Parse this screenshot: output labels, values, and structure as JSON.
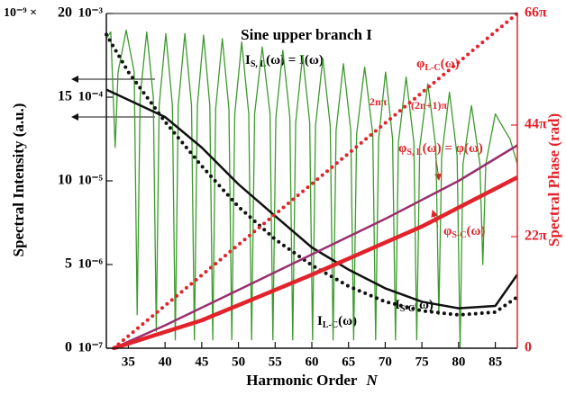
{
  "chart_data": {
    "type": "line",
    "title": "Sine upper branch I",
    "x_label": {
      "main": "Harmonic Order",
      "var": "N"
    },
    "y_label": "Spectral Intensity   (a.u.)",
    "y2_label": "Spectral Phase   (rad)",
    "ytick_multiplier": "10⁻⁹ ×",
    "xlim": [
      32,
      88
    ],
    "xticks": [
      35,
      40,
      45,
      50,
      55,
      60,
      65,
      70,
      75,
      80,
      85
    ],
    "ylim": [
      0,
      20
    ],
    "yticks": [
      0,
      5,
      10,
      15,
      20
    ],
    "y3lim": [
      1e-07,
      0.001
    ],
    "y3log": true,
    "y3ticks": [
      {
        "value": 1e-07,
        "label": "10⁻⁷"
      },
      {
        "value": 1e-06,
        "label": "10⁻⁶"
      },
      {
        "value": 1e-05,
        "label": "10⁻⁵"
      },
      {
        "value": 0.0001,
        "label": "10⁻⁴"
      },
      {
        "value": 0.001,
        "label": "10⁻³"
      }
    ],
    "y2lim": [
      0,
      66
    ],
    "y2ticks": [
      0,
      {
        "value": 22,
        "label": "22π"
      },
      {
        "value": 44,
        "label": "44π"
      },
      {
        "value": 66,
        "label": "66π"
      }
    ],
    "y2_color": "#e3232b",
    "series": [
      {
        "axis": "y",
        "color": "#3c9a2c",
        "style": "solid",
        "width": 1.3,
        "x": [
          32,
          32.6,
          33.2,
          33.6,
          34.7,
          35.8,
          36.2,
          36.6,
          37.5,
          38.4,
          38.8,
          39.2,
          40.1,
          41.0,
          41.4,
          41.8,
          42.7,
          43.6,
          44.0,
          44.4,
          45.25,
          46.1,
          46.5,
          46.9,
          47.8,
          48.7,
          49.1,
          49.5,
          50.45,
          51.4,
          51.8,
          52.2,
          53.25,
          54.3,
          54.7,
          55.1,
          56.05,
          57.0,
          57.4,
          57.8,
          58.75,
          59.7,
          60.1,
          60.5,
          61.5,
          62.5,
          62.9,
          63.3,
          64.3,
          65.3,
          65.7,
          66.1,
          67.2,
          68.3,
          68.7,
          69.1,
          70.05,
          71.0,
          71.4,
          71.8,
          72.85,
          73.9,
          74.3,
          74.7,
          75.8,
          76.9,
          77.3,
          77.7,
          78.75,
          79.8,
          80.2,
          80.6,
          81.75,
          82.9,
          83.3,
          83.7,
          85.0,
          86.3,
          87.0,
          88.0
        ],
        "values": [
          18.5,
          18.9,
          12,
          16.5,
          19,
          16.5,
          2,
          15,
          18.9,
          15,
          1,
          14.5,
          18.8,
          14.5,
          0.5,
          14.5,
          18.8,
          14.5,
          0.5,
          14.5,
          18.7,
          14.5,
          0.5,
          14.3,
          18.5,
          14.3,
          0.5,
          14,
          18.3,
          14,
          0.5,
          14,
          18,
          14,
          0.5,
          13.8,
          17.8,
          13.8,
          0.5,
          13.5,
          17.5,
          13.5,
          0.5,
          13.3,
          17.3,
          13.3,
          0.5,
          13,
          17,
          13,
          0.5,
          12.8,
          16.8,
          12.8,
          0.5,
          12.5,
          16.5,
          12.5,
          0.5,
          12.3,
          16.2,
          12.3,
          0.5,
          12,
          15.8,
          12,
          2,
          11.5,
          15.3,
          11.5,
          0,
          11,
          14.5,
          11,
          5,
          11,
          14,
          13,
          12.5,
          11
        ]
      },
      {
        "axis": "y3",
        "color": "#111111",
        "style": "solid",
        "width": 2.5,
        "x": [
          32,
          40,
          45,
          50,
          55,
          60,
          65,
          70,
          75,
          80,
          85,
          88
        ],
        "values": [
          0.000123,
          5.8e-05,
          2.5e-05,
          9.1e-06,
          3.8e-06,
          1.6e-06,
          8.7e-07,
          5.2e-07,
          3.6e-07,
          3e-07,
          3.2e-07,
          7.6e-07
        ]
      },
      {
        "axis": "y3",
        "color": "#111111",
        "style": "dotted",
        "width": 4,
        "x": [
          32,
          35,
          40,
          45,
          50,
          55,
          60,
          65,
          70,
          75,
          80,
          85,
          88
        ],
        "values": [
          0.00056,
          0.0002,
          5.1e-05,
          1.5e-05,
          4.9e-06,
          2e-06,
          9.8e-07,
          5.5e-07,
          3.6e-07,
          2.8e-07,
          2.5e-07,
          2.7e-07,
          4.1e-07
        ]
      },
      {
        "axis": "y2",
        "color": "#e3232b",
        "style": "dotted",
        "width": 4,
        "x": [
          33,
          88
        ],
        "values": [
          0,
          66
        ]
      },
      {
        "axis": "y2",
        "color": "#9a2f6e",
        "style": "solid",
        "width": 2.5,
        "x": [
          33,
          40,
          50,
          60,
          70,
          80,
          88
        ],
        "values": [
          0,
          4.5,
          11.5,
          18.5,
          25.5,
          33,
          40
        ]
      },
      {
        "axis": "y2",
        "color": "#e3232b",
        "style": "solid",
        "width": 4.5,
        "x": [
          33,
          45,
          60,
          75,
          88
        ],
        "values": [
          0,
          5.5,
          14.5,
          24,
          33.7
        ]
      }
    ],
    "annotations": {
      "i_sl": {
        "main": "I",
        "sub": "S, L",
        "rest": "(ω) = I(ω)"
      },
      "phi_lc": {
        "main": "φ",
        "sub": "L-C",
        "rest": "(ω)"
      },
      "two_n_pi": "2nπ",
      "two_n_plus_one_pi": "(2n+1)π",
      "phi_sl": {
        "main": "φ",
        "sub": "S, L",
        "rest": "(ω) = φ(ω)"
      },
      "phi_sc": {
        "main": "φ",
        "sub": "S-C",
        "rest": "(ω)"
      },
      "i_sc": {
        "main": "I",
        "sub": "S-C",
        "rest": "(ω)"
      },
      "i_lc": {
        "main": "I",
        "sub": "L-C",
        "rest": "(ω)"
      }
    }
  }
}
